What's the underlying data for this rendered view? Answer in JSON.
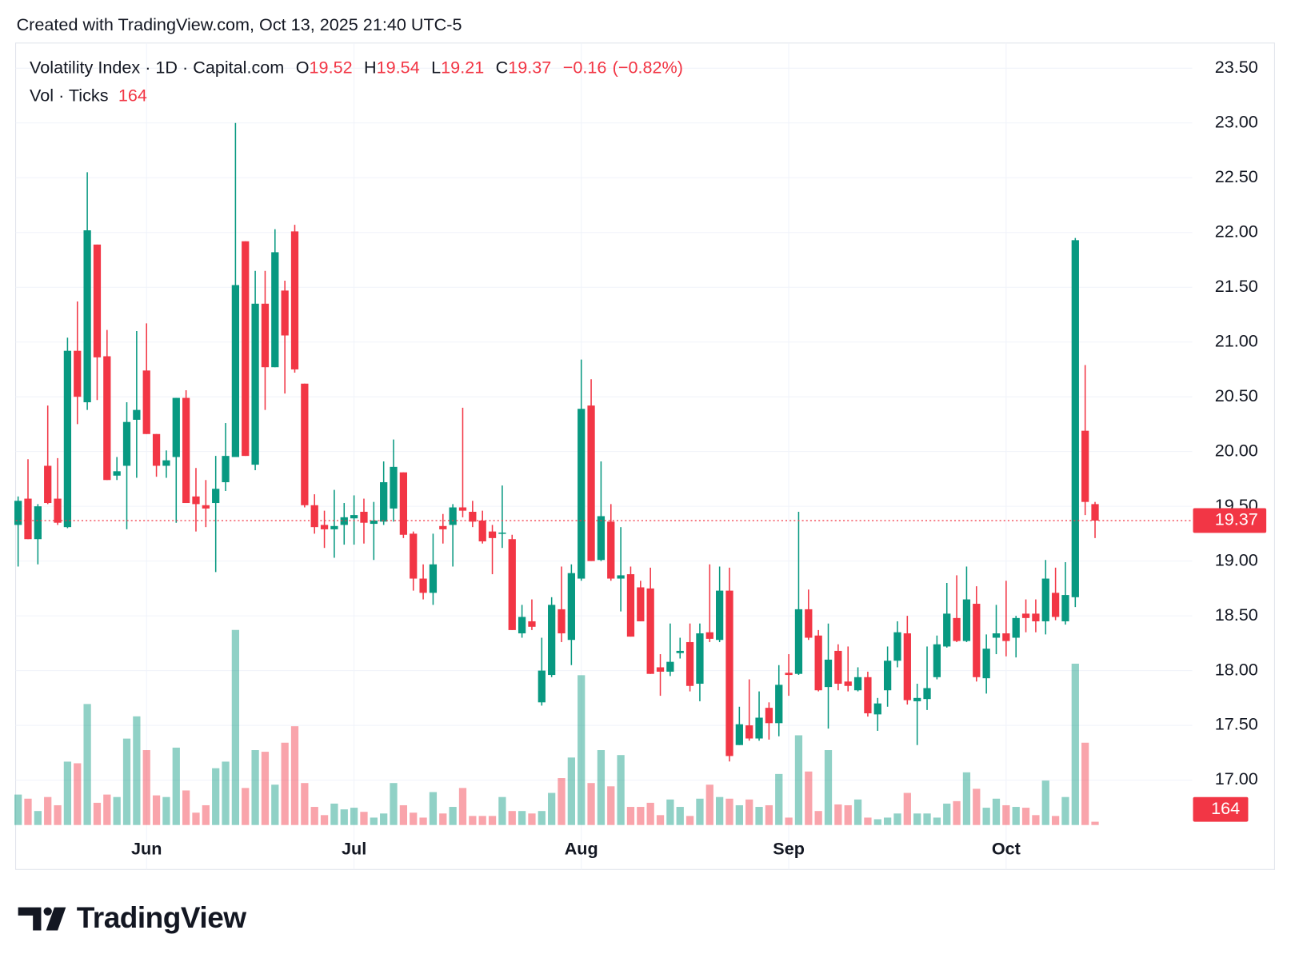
{
  "chart_data": {
    "type": "candlestick",
    "created_note": "Created with TradingView.com, Oct 13, 2025 21:40 UTC-5",
    "symbol_label": "Volatility Index · 1D · Capital.com",
    "open_label": "O",
    "high_label": "H",
    "low_label": "L",
    "close_label": "C",
    "change": {
      "value": -0.16,
      "label": "−0.16"
    },
    "change_pct": {
      "value": -0.82,
      "label": "(−0.82%)"
    },
    "volume_label": "Vol · Ticks",
    "brand": "TradingView",
    "up_color": "#089981",
    "down_color": "#f23645",
    "grid": true,
    "categories": [
      null,
      null,
      null,
      null,
      null,
      null,
      null,
      null,
      null,
      null,
      null,
      null,
      null,
      "Jun",
      null,
      null,
      null,
      null,
      null,
      null,
      null,
      null,
      null,
      null,
      null,
      null,
      null,
      null,
      null,
      null,
      null,
      null,
      null,
      null,
      "Jul",
      null,
      null,
      null,
      null,
      null,
      null,
      null,
      null,
      null,
      null,
      null,
      null,
      null,
      null,
      null,
      null,
      null,
      null,
      null,
      null,
      null,
      null,
      "Aug",
      null,
      null,
      null,
      null,
      null,
      null,
      null,
      null,
      null,
      null,
      null,
      null,
      null,
      null,
      null,
      null,
      null,
      null,
      null,
      null,
      "Sep",
      null,
      null,
      null,
      null,
      null,
      null,
      null,
      null,
      null,
      null,
      null,
      null,
      null,
      null,
      null,
      null,
      null,
      null,
      null,
      null,
      null,
      "Oct",
      null,
      null,
      null,
      null,
      null,
      null,
      null,
      null,
      null
    ],
    "open": [
      19.33,
      19.57,
      19.2,
      19.87,
      19.57,
      19.31,
      20.92,
      20.45,
      21.89,
      20.87,
      19.78,
      19.87,
      20.29,
      20.74,
      20.16,
      19.87,
      19.95,
      20.49,
      19.59,
      19.51,
      19.53,
      19.72,
      19.95,
      21.92,
      19.88,
      21.35,
      20.77,
      21.47,
      22.01,
      20.62,
      19.51,
      19.33,
      19.29,
      19.33,
      19.39,
      19.45,
      19.34,
      19.36,
      19.48,
      19.81,
      19.25,
      18.84,
      18.71,
      19.32,
      19.33,
      19.49,
      19.45,
      19.37,
      19.27,
      19.25,
      19.2,
      18.34,
      18.45,
      17.71,
      17.96,
      18.56,
      18.28,
      18.84,
      20.42,
      19.01,
      19.36,
      18.84,
      18.88,
      18.76,
      18.75,
      18.03,
      17.99,
      18.16,
      18.26,
      17.88,
      18.35,
      18.28,
      18.73,
      17.32,
      17.5,
      17.38,
      17.66,
      17.52,
      17.98,
      17.97,
      18.56,
      18.32,
      17.85,
      18.18,
      17.9,
      17.82,
      17.94,
      17.6,
      17.82,
      18.09,
      18.34,
      17.72,
      17.74,
      17.94,
      18.22,
      18.48,
      18.27,
      18.61,
      17.93,
      18.3,
      18.34,
      18.3,
      18.52,
      18.52,
      18.45,
      18.71,
      18.45,
      18.67,
      20.19,
      19.52
    ],
    "high": [
      19.59,
      19.93,
      19.52,
      20.42,
      19.94,
      21.04,
      21.37,
      22.55,
      21.89,
      21.11,
      19.95,
      20.45,
      21.1,
      21.17,
      20.16,
      20.01,
      20.49,
      20.56,
      19.85,
      19.74,
      19.96,
      20.26,
      23.0,
      21.92,
      21.65,
      21.65,
      22.03,
      21.56,
      22.07,
      20.62,
      19.61,
      19.46,
      19.65,
      19.53,
      19.6,
      19.57,
      19.54,
      19.91,
      20.11,
      19.81,
      19.27,
      18.97,
      19.25,
      19.43,
      19.52,
      20.4,
      19.55,
      19.46,
      19.33,
      19.69,
      19.24,
      18.6,
      18.65,
      18.3,
      18.67,
      18.95,
      18.97,
      20.84,
      20.66,
      19.91,
      19.52,
      19.31,
      18.95,
      18.82,
      18.94,
      18.15,
      18.43,
      18.3,
      18.43,
      18.43,
      18.97,
      18.95,
      18.94,
      17.67,
      17.92,
      17.81,
      17.71,
      18.05,
      18.15,
      19.45,
      18.74,
      18.37,
      18.43,
      18.24,
      18.22,
      18.03,
      17.99,
      17.75,
      18.22,
      18.45,
      18.5,
      17.88,
      18.22,
      18.32,
      18.8,
      18.87,
      18.95,
      18.77,
      18.33,
      18.6,
      18.82,
      18.5,
      18.65,
      18.65,
      19.01,
      18.94,
      18.99,
      21.95,
      20.79,
      19.54
    ],
    "low": [
      18.95,
      19.2,
      18.97,
      19.52,
      19.33,
      19.3,
      20.25,
      20.38,
      20.47,
      19.74,
      19.74,
      19.29,
      19.76,
      20.16,
      19.77,
      19.76,
      19.35,
      19.53,
      19.27,
      19.31,
      18.9,
      19.64,
      19.95,
      19.96,
      19.83,
      20.38,
      20.77,
      20.53,
      20.72,
      19.49,
      19.25,
      19.12,
      19.03,
      19.15,
      19.15,
      19.16,
      19.01,
      19.33,
      19.36,
      19.21,
      18.73,
      18.65,
      18.6,
      19.16,
      18.95,
      19.4,
      19.31,
      19.16,
      18.88,
      19.12,
      18.37,
      18.3,
      18.37,
      17.68,
      17.94,
      18.26,
      18.05,
      18.82,
      19.0,
      19.0,
      18.82,
      18.54,
      18.31,
      18.45,
      17.97,
      17.77,
      17.95,
      18.11,
      17.81,
      17.72,
      18.26,
      18.26,
      17.17,
      17.32,
      17.36,
      17.36,
      17.37,
      17.4,
      17.77,
      17.96,
      18.28,
      17.81,
      17.47,
      17.82,
      17.81,
      17.81,
      17.58,
      17.45,
      17.67,
      18.03,
      17.69,
      17.32,
      17.64,
      17.92,
      18.21,
      18.26,
      18.26,
      17.9,
      17.79,
      18.15,
      18.13,
      18.12,
      18.35,
      18.35,
      18.33,
      18.46,
      18.42,
      18.58,
      19.42,
      19.21
    ],
    "close": [
      19.55,
      19.2,
      19.5,
      19.53,
      19.35,
      20.92,
      20.5,
      22.02,
      20.86,
      19.74,
      19.82,
      20.27,
      20.38,
      20.16,
      19.87,
      19.92,
      20.49,
      19.53,
      19.52,
      19.48,
      19.66,
      19.96,
      21.52,
      19.96,
      21.35,
      20.77,
      21.82,
      21.06,
      20.75,
      19.51,
      19.31,
      19.29,
      19.32,
      19.4,
      19.42,
      19.35,
      19.37,
      19.72,
      19.86,
      19.24,
      18.84,
      18.71,
      18.97,
      19.29,
      19.49,
      19.46,
      19.36,
      19.18,
      19.21,
      19.26,
      18.37,
      18.49,
      18.4,
      18.0,
      18.6,
      18.34,
      18.89,
      20.39,
      19.0,
      19.41,
      18.84,
      18.87,
      18.31,
      18.45,
      17.97,
      17.99,
      18.08,
      18.18,
      17.86,
      18.34,
      18.29,
      18.73,
      17.22,
      17.51,
      17.38,
      17.57,
      17.52,
      17.87,
      17.96,
      18.56,
      18.3,
      17.82,
      18.1,
      17.88,
      17.86,
      17.94,
      17.61,
      17.7,
      18.09,
      18.35,
      17.73,
      17.75,
      17.84,
      18.24,
      18.52,
      18.27,
      18.65,
      17.94,
      18.2,
      18.34,
      18.27,
      18.48,
      18.48,
      18.45,
      18.84,
      18.49,
      18.69,
      21.93,
      19.54,
      19.37
    ],
    "volume": [
      1517,
      1312,
      697,
      1394,
      984,
      3157,
      3075,
      6027,
      1107,
      1517,
      1394,
      4305,
      5412,
      3731,
      1476,
      1394,
      3854,
      1722,
      615,
      984,
      2829,
      3157,
      9717,
      1845,
      3731,
      3649,
      2009,
      4100,
      4920,
      2091,
      902,
      492,
      1066,
      779,
      861,
      656,
      369,
      574,
      2091,
      984,
      615,
      369,
      1640,
      574,
      902,
      1845,
      451,
      451,
      451,
      1394,
      697,
      697,
      574,
      697,
      1599,
      2337,
      3362,
      7462,
      2091,
      3731,
      1927,
      3485,
      902,
      902,
      1107,
      492,
      1271,
      902,
      451,
      1312,
      2009,
      1394,
      1312,
      984,
      1271,
      902,
      984,
      2542,
      369,
      4469,
      2665,
      697,
      3731,
      1025,
      984,
      1271,
      369,
      287,
      369,
      574,
      1599,
      574,
      574,
      369,
      1066,
      1189,
      2624,
      1804,
      861,
      1312,
      984,
      902,
      861,
      492,
      2214,
      451,
      1394,
      8036,
      4100,
      164
    ],
    "ylim": [
      16.59,
      23.73
    ],
    "volume_lim": [
      0,
      10250
    ],
    "yticks": [
      {
        "value": 17.0,
        "label": "17.00"
      },
      {
        "value": 17.5,
        "label": "17.50"
      },
      {
        "value": 18.0,
        "label": "18.00"
      },
      {
        "value": 18.5,
        "label": "18.50"
      },
      {
        "value": 19.0,
        "label": "19.00"
      },
      {
        "value": 19.5,
        "label": "19.50"
      },
      {
        "value": 20.0,
        "label": "20.00"
      },
      {
        "value": 20.5,
        "label": "20.50"
      },
      {
        "value": 21.0,
        "label": "21.00"
      },
      {
        "value": 21.5,
        "label": "21.50"
      },
      {
        "value": 22.0,
        "label": "22.00"
      },
      {
        "value": 22.5,
        "label": "22.50"
      },
      {
        "value": 23.0,
        "label": "23.00"
      },
      {
        "value": 23.5,
        "label": "23.50"
      }
    ]
  }
}
